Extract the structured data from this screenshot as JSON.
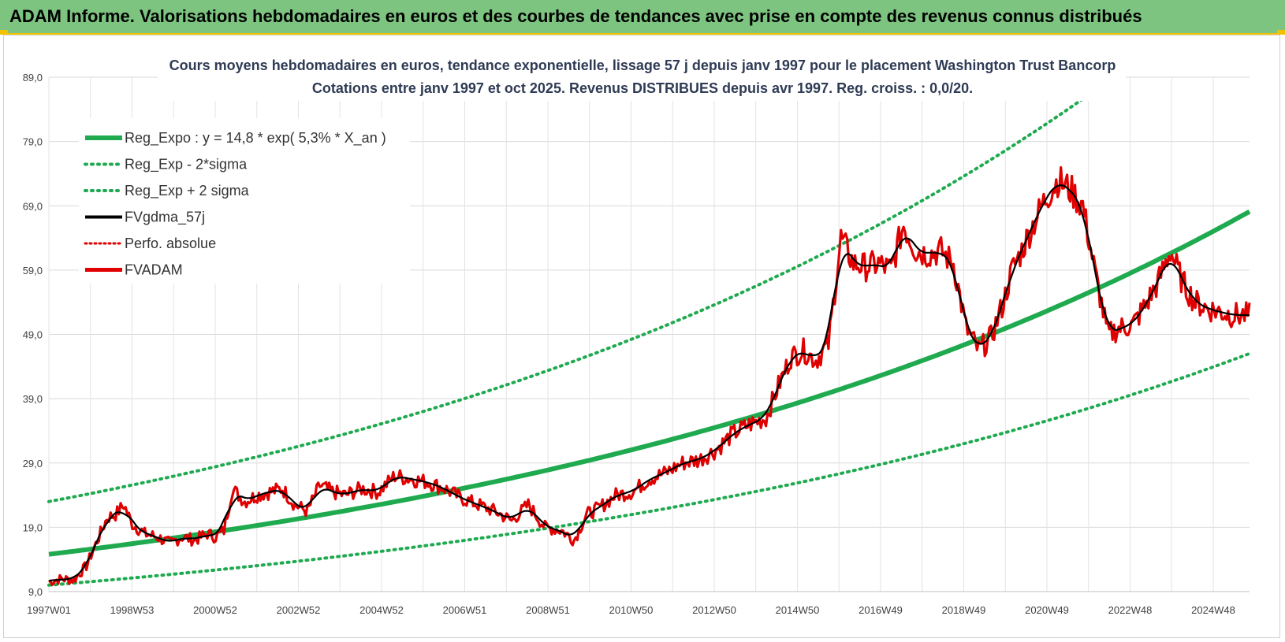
{
  "banner": {
    "title": "ADAM Informe. Valorisations hebdomadaires en euros et des courbes de tendances avec prise en compte des revenus connus distribués",
    "color": "#7cc47f",
    "accent": "#f2c200"
  },
  "chart_data": {
    "type": "line",
    "title": "Cours moyens hebdomadaires en euros, tendance exponentielle, lissage 57 j depuis janv 1997 pour le placement Washington Trust Bancorp",
    "subtitle": "Cotations entre janv 1997 et oct 2025. Revenus DISTRIBUES depuis avr 1997. Reg. croiss. : 0,0/20.",
    "xlabel": "",
    "ylabel": "",
    "x_range": [
      1997.0,
      2025.8
    ],
    "ylim": [
      9,
      89
    ],
    "y_ticks": [
      "9,0",
      "19,0",
      "29,0",
      "39,0",
      "49,0",
      "59,0",
      "69,0",
      "79,0",
      "89,0"
    ],
    "x_ticks": [
      "1997W01",
      "1998W53",
      "2000W52",
      "2002W52",
      "2004W52",
      "2006W51",
      "2008W51",
      "2010W50",
      "2012W50",
      "2014W50",
      "2016W49",
      "2018W49",
      "2020W49",
      "2022W48",
      "2024W48"
    ],
    "grid": true,
    "legend_position": "top-left",
    "series": [
      {
        "name": "Reg_Expo : y = 14,8 * exp( 5,3% *  X_an )",
        "color": "#1faa50",
        "style": "solid",
        "formula": {
          "a": 14.8,
          "b": 0.053,
          "x0": 1997.0
        }
      },
      {
        "name": "Reg_Exp - 2*sigma",
        "color": "#1faa50",
        "style": "dotted",
        "formula": {
          "a": 10.0,
          "b": 0.053,
          "x0": 1997.0
        }
      },
      {
        "name": "Reg_Exp + 2 sigma",
        "color": "#1faa50",
        "style": "dotted",
        "formula": {
          "a": 23.0,
          "b": 0.053,
          "x0": 1997.0
        }
      },
      {
        "name": "FVgdma_57j",
        "color": "#000000",
        "style": "solid"
      },
      {
        "name": "Perfo. absolue",
        "color": "#e00000",
        "style": "dotted"
      },
      {
        "name": "FVADAM",
        "color": "#e00000",
        "style": "solid",
        "x": [
          1997.0,
          1997.3,
          1997.6,
          1997.9,
          1998.2,
          1998.4,
          1998.6,
          1998.8,
          1999.0,
          1999.3,
          1999.6,
          1999.9,
          2000.2,
          2000.5,
          2000.8,
          2001.0,
          2001.2,
          2001.4,
          2001.7,
          2002.0,
          2002.3,
          2002.6,
          2002.9,
          2003.2,
          2003.5,
          2003.8,
          2004.1,
          2004.5,
          2004.9,
          2005.3,
          2005.7,
          2006.1,
          2006.5,
          2006.9,
          2007.3,
          2007.7,
          2008.1,
          2008.5,
          2008.9,
          2009.3,
          2009.6,
          2009.9,
          2010.2,
          2010.6,
          2011.0,
          2011.4,
          2011.8,
          2012.2,
          2012.6,
          2013.0,
          2013.4,
          2013.8,
          2014.2,
          2014.5,
          2014.8,
          2015.1,
          2015.4,
          2015.7,
          2016.0,
          2016.3,
          2016.6,
          2016.9,
          2017.2,
          2017.5,
          2017.8,
          2018.1,
          2018.4,
          2018.7,
          2019.0,
          2019.3,
          2019.6,
          2019.9,
          2020.1,
          2020.3,
          2020.6,
          2020.9,
          2021.2,
          2021.5,
          2021.8,
          2022.1,
          2022.4,
          2022.7,
          2023.0,
          2023.3,
          2023.6,
          2023.9,
          2024.2,
          2024.5,
          2024.8,
          2025.1,
          2025.4,
          2025.8
        ],
        "values": [
          10.5,
          11.0,
          10.8,
          13.0,
          17.5,
          20.5,
          21.0,
          22.5,
          19.5,
          18.0,
          17.5,
          16.5,
          17.5,
          17.0,
          18.0,
          17.5,
          18.5,
          25.0,
          23.0,
          24.0,
          24.5,
          25.0,
          22.5,
          21.5,
          25.5,
          24.5,
          24.0,
          25.0,
          24.5,
          27.0,
          26.5,
          26.0,
          25.0,
          23.5,
          22.5,
          21.5,
          20.0,
          22.5,
          19.0,
          18.5,
          17.0,
          21.0,
          22.0,
          24.0,
          24.5,
          26.5,
          27.5,
          29.0,
          29.5,
          31.0,
          33.5,
          35.0,
          36.0,
          41.0,
          45.5,
          46.5,
          45.0,
          47.5,
          64.0,
          60.0,
          59.5,
          60.0,
          59.0,
          66.0,
          62.0,
          61.5,
          62.0,
          60.0,
          50.0,
          46.5,
          48.5,
          54.0,
          59.0,
          61.5,
          66.0,
          70.0,
          73.0,
          71.5,
          69.0,
          58.5,
          49.0,
          50.0,
          50.5,
          53.5,
          57.0,
          62.0,
          57.0,
          54.0,
          53.0,
          52.5,
          52.0,
          52.0
        ]
      }
    ]
  }
}
